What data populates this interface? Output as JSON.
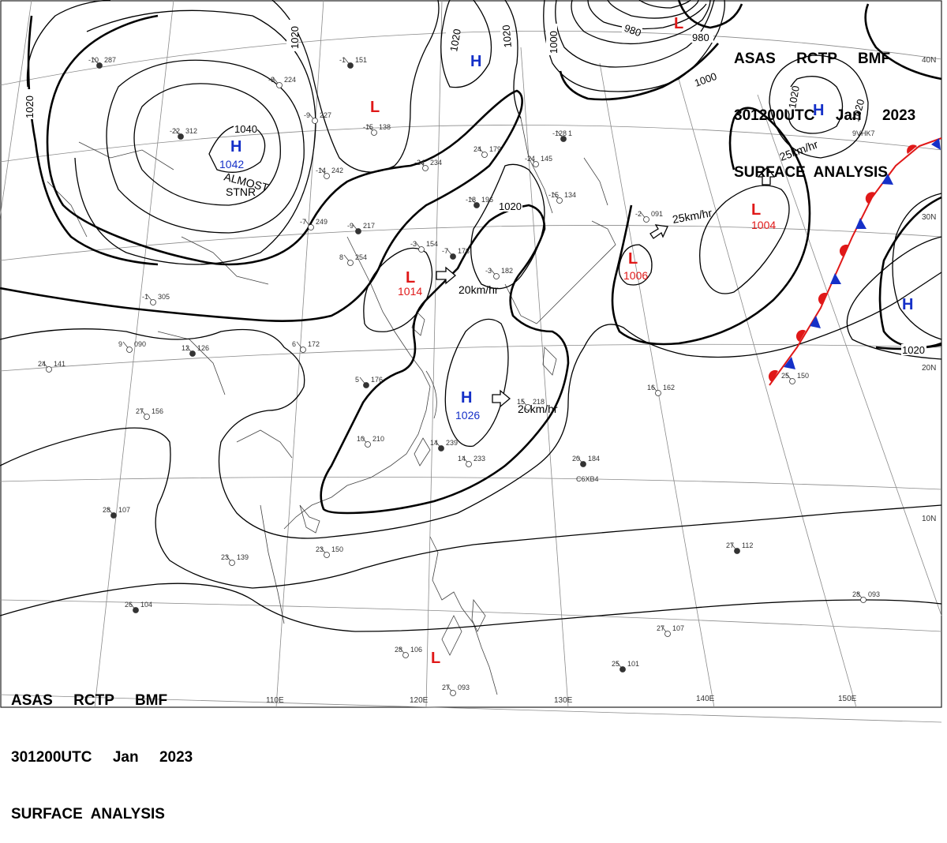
{
  "header": {
    "line1": "ASAS     RCTP     BMF",
    "line2": "301200UTC     Jan     2023",
    "line3": "SURFACE  ANALYSIS"
  },
  "footer": {
    "line1": "ASAS     RCTP     BMF",
    "line2": "301200UTC     Jan     2023",
    "line3": "SURFACE  ANALYSIS"
  },
  "lon_labels": [
    "110E",
    "120E",
    "130E",
    "140E",
    "150E"
  ],
  "lat_labels": [
    "40N",
    "30N",
    "20N",
    "10N"
  ],
  "isobar_labels": [
    "1020",
    "1020",
    "1020",
    "1040",
    "1020",
    "1000",
    "980",
    "980",
    "1000",
    "1020",
    "1020",
    "1020",
    "1020"
  ],
  "centers": [
    {
      "symbol": "H",
      "value": "1042",
      "color": "#1530c8"
    },
    {
      "symbol": "H",
      "value": "",
      "color": "#1530c8"
    },
    {
      "symbol": "H",
      "value": "",
      "color": "#1530c8"
    },
    {
      "symbol": "H",
      "value": "1026",
      "color": "#1530c8"
    },
    {
      "symbol": "H",
      "value": "",
      "color": "#1530c8"
    },
    {
      "symbol": "L",
      "value": "",
      "color": "#e01818"
    },
    {
      "symbol": "L",
      "value": "",
      "color": "#e01818"
    },
    {
      "symbol": "L",
      "value": "1014",
      "color": "#e01818"
    },
    {
      "symbol": "L",
      "value": "1006",
      "color": "#e01818"
    },
    {
      "symbol": "L",
      "value": "1004",
      "color": "#e01818"
    },
    {
      "symbol": "L",
      "value": "",
      "color": "#e01818"
    }
  ],
  "motions": [
    "20km/hr",
    "20km/hr",
    "25km/hr",
    "25km/hr"
  ],
  "almost_stnr": [
    "ALMOST",
    "STNR"
  ],
  "stations": [
    {
      "a": "-10",
      "b": "287"
    },
    {
      "a": "-8",
      "b": "224"
    },
    {
      "a": "-9",
      "b": "227"
    },
    {
      "a": "-22",
      "b": "312"
    },
    {
      "a": "-14",
      "b": "242"
    },
    {
      "a": "-7",
      "b": "249"
    },
    {
      "a": "-9",
      "b": "217"
    },
    {
      "a": "8",
      "b": "254"
    },
    {
      "a": "-24",
      "b": "234"
    },
    {
      "a": "-1",
      "b": "151"
    },
    {
      "a": "-15",
      "b": "138"
    },
    {
      "a": "24",
      "b": "179"
    },
    {
      "a": "-18",
      "b": "196"
    },
    {
      "a": "-24",
      "b": "145"
    },
    {
      "a": "-15",
      "b": "134"
    },
    {
      "a": "-128",
      "b": "1"
    },
    {
      "a": "-1",
      "b": "305"
    },
    {
      "a": "9",
      "b": "090"
    },
    {
      "a": "12",
      "b": "126"
    },
    {
      "a": "6",
      "b": "172"
    },
    {
      "a": "24",
      "b": "141"
    },
    {
      "a": "5",
      "b": "176"
    },
    {
      "a": "27",
      "b": "156"
    },
    {
      "a": "10",
      "b": "210"
    },
    {
      "a": "14",
      "b": "239"
    },
    {
      "a": "14",
      "b": "233"
    },
    {
      "a": "15",
      "b": "218"
    },
    {
      "a": "20",
      "b": "184"
    },
    {
      "a": "16",
      "b": "162"
    },
    {
      "a": "25",
      "b": "150"
    },
    {
      "a": "28",
      "b": "107"
    },
    {
      "a": "23",
      "b": "139"
    },
    {
      "a": "23",
      "b": "150"
    },
    {
      "a": "26",
      "b": "104"
    },
    {
      "a": "28",
      "b": "106"
    },
    {
      "a": "27",
      "b": "093"
    },
    {
      "a": "25",
      "b": "101"
    },
    {
      "a": "27",
      "b": "107"
    },
    {
      "a": "28",
      "b": "093"
    },
    {
      "a": "27",
      "b": "112"
    },
    {
      "a": "-2",
      "b": "091"
    },
    {
      "a": "-3",
      "b": "154"
    },
    {
      "a": "-7",
      "b": "176"
    },
    {
      "a": "-3",
      "b": "182"
    }
  ],
  "ship_ids": [
    "C6XB4",
    "9VHK7"
  ],
  "colors": {
    "high": "#1530c8",
    "low": "#e01818",
    "cold_front": "#1530c8",
    "warm_front": "#e01818",
    "isobar": "#000000",
    "grid": "#888888"
  }
}
